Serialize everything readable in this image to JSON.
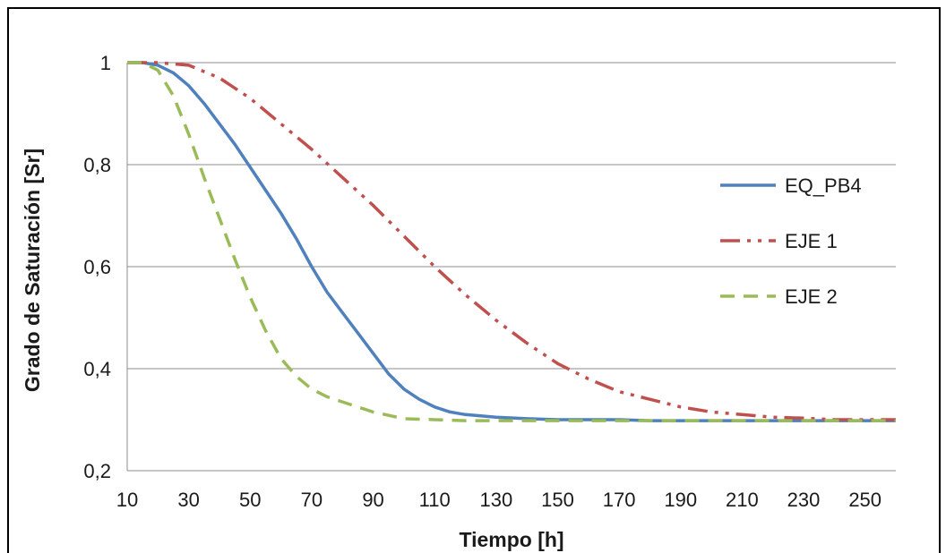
{
  "chart_data": {
    "type": "line",
    "title": "",
    "xlabel": "Tiempo [h]",
    "ylabel": "Grado de Saturación [Sr]",
    "xlim": [
      10,
      260
    ],
    "ylim": [
      0.2,
      1.0
    ],
    "xticks": [
      10,
      30,
      50,
      70,
      90,
      110,
      130,
      150,
      170,
      190,
      210,
      230,
      250
    ],
    "xtick_labels": [
      "10",
      "30",
      "50",
      "70",
      "90",
      "110",
      "130",
      "150",
      "170",
      "190",
      "210",
      "230",
      "250"
    ],
    "yticks": [
      0.2,
      0.4,
      0.6,
      0.8,
      1.0
    ],
    "ytick_labels": [
      "0,2",
      "0,4",
      "0,6",
      "0,8",
      "1"
    ],
    "grid": "horizontal",
    "legend_position": "right",
    "series": [
      {
        "name": "EQ_PB4",
        "color": "#4f81bd",
        "style": "solid",
        "x": [
          10,
          15,
          20,
          25,
          30,
          35,
          40,
          45,
          50,
          55,
          60,
          65,
          70,
          75,
          80,
          85,
          90,
          95,
          100,
          105,
          110,
          115,
          120,
          130,
          140,
          150,
          160,
          170,
          180,
          200,
          220,
          240,
          260
        ],
        "y": [
          1.0,
          1.0,
          0.995,
          0.98,
          0.955,
          0.92,
          0.88,
          0.84,
          0.795,
          0.75,
          0.705,
          0.655,
          0.6,
          0.55,
          0.51,
          0.47,
          0.43,
          0.39,
          0.36,
          0.34,
          0.325,
          0.315,
          0.31,
          0.305,
          0.302,
          0.3,
          0.3,
          0.3,
          0.298,
          0.298,
          0.298,
          0.298,
          0.298
        ]
      },
      {
        "name": "EJE 1",
        "color": "#c0504d",
        "style": "dash-dot-dot",
        "x": [
          10,
          20,
          30,
          40,
          50,
          60,
          70,
          80,
          90,
          100,
          110,
          120,
          130,
          140,
          150,
          160,
          170,
          180,
          190,
          200,
          210,
          220,
          230,
          240,
          250,
          260
        ],
        "y": [
          1.0,
          1.0,
          0.995,
          0.97,
          0.93,
          0.88,
          0.83,
          0.775,
          0.72,
          0.66,
          0.6,
          0.545,
          0.495,
          0.45,
          0.41,
          0.38,
          0.355,
          0.34,
          0.325,
          0.315,
          0.31,
          0.305,
          0.303,
          0.3,
          0.3,
          0.3
        ]
      },
      {
        "name": "EJE 2",
        "color": "#9bbb59",
        "style": "dashed",
        "x": [
          10,
          15,
          20,
          25,
          30,
          35,
          40,
          45,
          50,
          55,
          60,
          65,
          70,
          75,
          80,
          90,
          100,
          110,
          120,
          150,
          200,
          260
        ],
        "y": [
          1.0,
          1.0,
          0.985,
          0.935,
          0.86,
          0.775,
          0.695,
          0.615,
          0.54,
          0.475,
          0.42,
          0.385,
          0.36,
          0.345,
          0.335,
          0.315,
          0.302,
          0.3,
          0.298,
          0.298,
          0.298,
          0.298
        ]
      }
    ]
  }
}
